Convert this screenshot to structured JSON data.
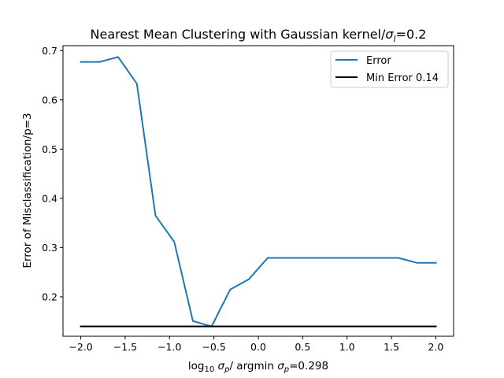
{
  "chart_data": {
    "type": "line",
    "title": {
      "main": "Nearest Mean Clustering with Gaussian kernel/",
      "sigma": "σ",
      "sub": "l",
      "suffix": "=0.2"
    },
    "xlabel": {
      "prefix": "log",
      "prefix_sub": "10",
      "sigma1": "σ",
      "sub1": "p",
      "middle": "/ argmin ",
      "sigma2": "σ",
      "sub2": "p",
      "suffix": "=0.298"
    },
    "ylabel": "Error of Misclassification/p=3",
    "xlim": [
      -2.2,
      2.2
    ],
    "ylim": [
      0.12,
      0.71
    ],
    "xticks": [
      -2.0,
      -1.5,
      -1.0,
      -0.5,
      0.0,
      0.5,
      1.0,
      1.5,
      2.0
    ],
    "xtick_labels": [
      "−2.0",
      "−1.5",
      "−1.0",
      "−0.5",
      "0.0",
      "0.5",
      "1.0",
      "1.5",
      "2.0"
    ],
    "yticks": [
      0.2,
      0.3,
      0.4,
      0.5,
      0.6,
      0.7
    ],
    "ytick_labels": [
      "0.2",
      "0.3",
      "0.4",
      "0.5",
      "0.6",
      "0.7"
    ],
    "legend_position": "top-right",
    "series": [
      {
        "name": "Error",
        "color": "#1f77b4",
        "x": [
          -2.0,
          -1.7895,
          -1.5789,
          -1.3684,
          -1.1579,
          -0.9474,
          -0.7368,
          -0.5263,
          -0.3158,
          -0.1053,
          0.1053,
          0.3158,
          0.5263,
          0.7368,
          0.9474,
          1.1579,
          1.3684,
          1.5789,
          1.7895,
          2.0
        ],
        "y": [
          0.677,
          0.677,
          0.687,
          0.633,
          0.365,
          0.312,
          0.151,
          0.14,
          0.215,
          0.236,
          0.279,
          0.279,
          0.279,
          0.279,
          0.279,
          0.279,
          0.279,
          0.279,
          0.269,
          0.269
        ]
      },
      {
        "name": "Min Error 0.14",
        "color": "#000000",
        "x": [
          -2.0,
          2.0
        ],
        "y": [
          0.14,
          0.14
        ]
      }
    ]
  }
}
